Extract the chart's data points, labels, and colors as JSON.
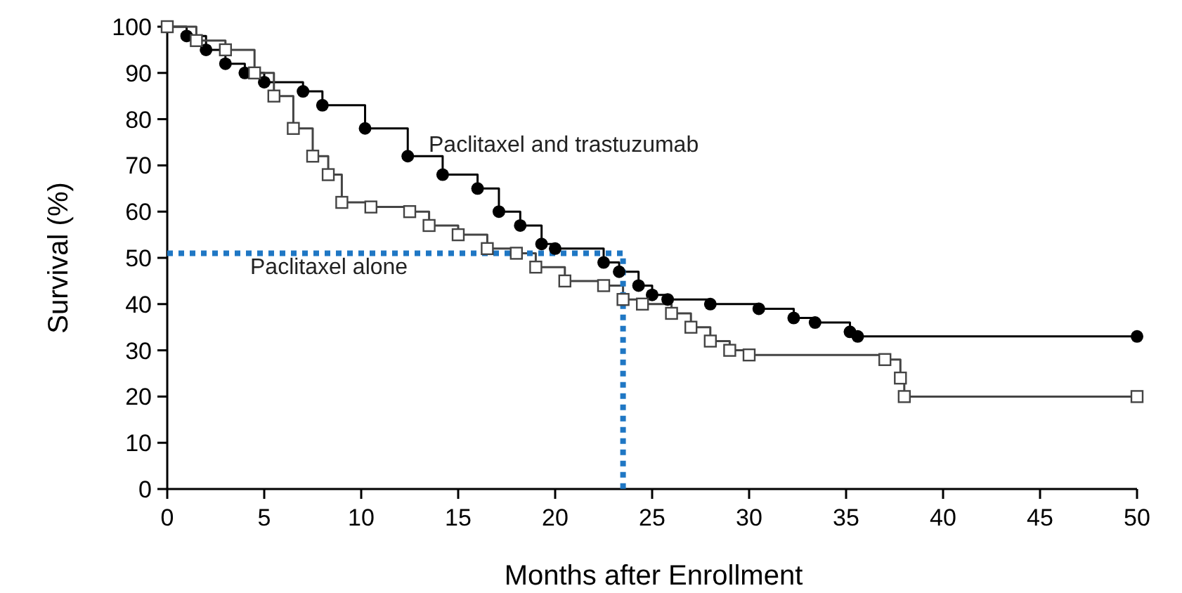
{
  "chart_data": {
    "type": "step",
    "xlabel": "Months after Enrollment",
    "ylabel": "Survival (%)",
    "xlim": [
      0,
      50
    ],
    "xticks": [
      0,
      5,
      10,
      15,
      20,
      25,
      30,
      35,
      40,
      45,
      50
    ],
    "ylim": [
      0,
      100
    ],
    "yticks": [
      0,
      10,
      20,
      30,
      40,
      50,
      60,
      70,
      80,
      90,
      100
    ],
    "grid": false,
    "series": [
      {
        "name": "Paclitaxel and trastuzumab",
        "color": "#000000",
        "marker": "circle",
        "x": [
          0,
          1,
          2,
          3,
          4,
          5,
          7,
          8,
          10.2,
          12.4,
          14.2,
          16,
          17.1,
          18.2,
          19.3,
          20,
          22.5,
          23.3,
          24.3,
          25,
          25.8,
          28,
          30.5,
          32.3,
          33.4,
          35.2,
          35.6,
          50
        ],
        "values": [
          100,
          98,
          95,
          92,
          90,
          88,
          86,
          83,
          78,
          72,
          68,
          65,
          60,
          57,
          53,
          52,
          49,
          47,
          44,
          42,
          41,
          40,
          39,
          37,
          36,
          34,
          33,
          33
        ]
      },
      {
        "name": "Paclitaxel alone",
        "color": "#444444",
        "marker": "square",
        "x": [
          0,
          1.5,
          3,
          4.5,
          5.5,
          6.5,
          7.5,
          8.3,
          9,
          10.5,
          12.5,
          13.5,
          15,
          16.5,
          18,
          19,
          20.5,
          22.5,
          23.5,
          24.5,
          26,
          27,
          28,
          29,
          30,
          37,
          37.8,
          38,
          50
        ],
        "values": [
          100,
          97,
          95,
          90,
          85,
          78,
          72,
          68,
          62,
          61,
          60,
          57,
          55,
          52,
          51,
          48,
          45,
          44,
          41,
          40,
          38,
          35,
          32,
          30,
          29,
          28,
          24,
          20,
          20
        ]
      },
      {
        "type": "line",
        "color": "#1f77c4",
        "marker": "none",
        "line_style": "dotted",
        "x": [
          0,
          23.5,
          23.5
        ],
        "values": [
          51,
          51,
          0
        ]
      }
    ]
  }
}
